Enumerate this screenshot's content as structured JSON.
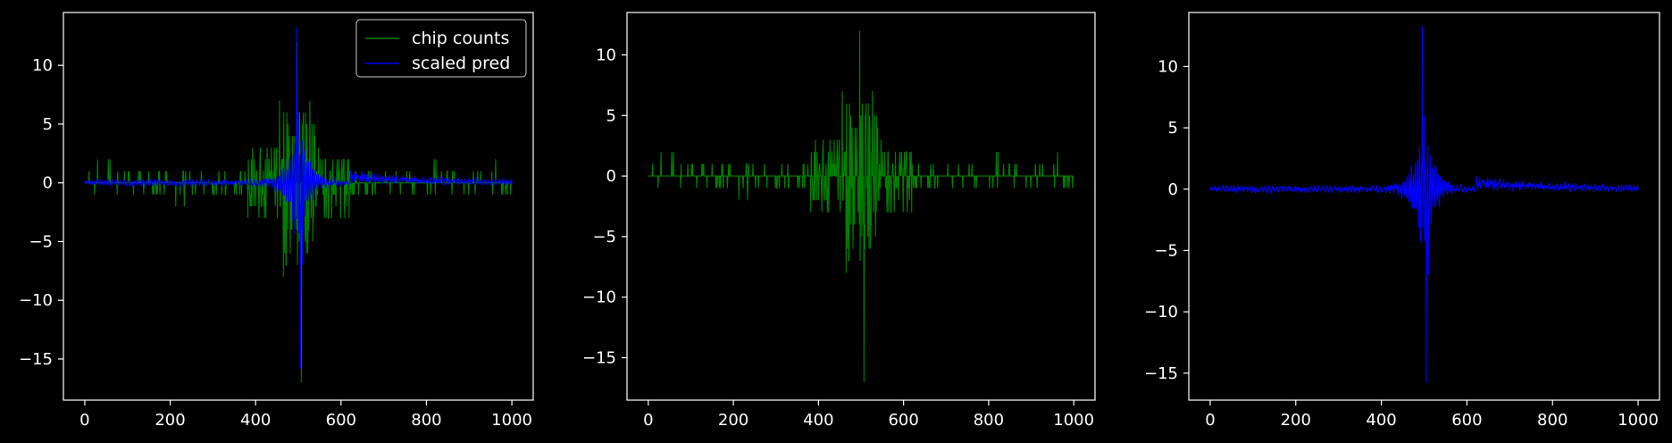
{
  "figure": {
    "background": "#000000",
    "axes_color": "#ffffff"
  },
  "chart_data": [
    {
      "type": "line",
      "panel": "left",
      "xlim": [
        -50,
        1050
      ],
      "ylim": [
        -18.5,
        14.5
      ],
      "xticks": [
        0,
        200,
        400,
        600,
        800,
        1000
      ],
      "yticks": [
        -15,
        -10,
        -5,
        0,
        5,
        10
      ],
      "legend": {
        "placement": "top-right",
        "entries": [
          "chip counts",
          "scaled pred"
        ]
      },
      "series": [
        {
          "name": "chip counts",
          "color": "#008000",
          "kind": "counts",
          "x_range": [
            0,
            1000
          ],
          "extremes": {
            "max": 12,
            "min": -17
          }
        },
        {
          "name": "scaled pred",
          "color": "#0000ff",
          "kind": "pred",
          "x_range": [
            0,
            1000
          ],
          "extremes": {
            "max": 13.3,
            "min": -15.8
          }
        }
      ]
    },
    {
      "type": "line",
      "panel": "middle",
      "xlim": [
        -50,
        1050
      ],
      "ylim": [
        -18.5,
        13.5
      ],
      "xticks": [
        0,
        200,
        400,
        600,
        800,
        1000
      ],
      "yticks": [
        -15,
        -10,
        -5,
        0,
        5,
        10
      ],
      "series": [
        {
          "name": "chip counts",
          "color": "#008000",
          "kind": "counts",
          "x_range": [
            0,
            1000
          ],
          "extremes": {
            "max": 12,
            "min": -17
          }
        }
      ]
    },
    {
      "type": "line",
      "panel": "right",
      "xlim": [
        -50,
        1050
      ],
      "ylim": [
        -17.2,
        14.4
      ],
      "xticks": [
        0,
        200,
        400,
        600,
        800,
        1000
      ],
      "yticks": [
        -15,
        -10,
        -5,
        0,
        5,
        10
      ],
      "series": [
        {
          "name": "scaled pred",
          "color": "#0000ff",
          "kind": "pred",
          "x_range": [
            0,
            1000
          ],
          "extremes": {
            "max": 13.3,
            "min": -15.8
          }
        }
      ]
    }
  ]
}
